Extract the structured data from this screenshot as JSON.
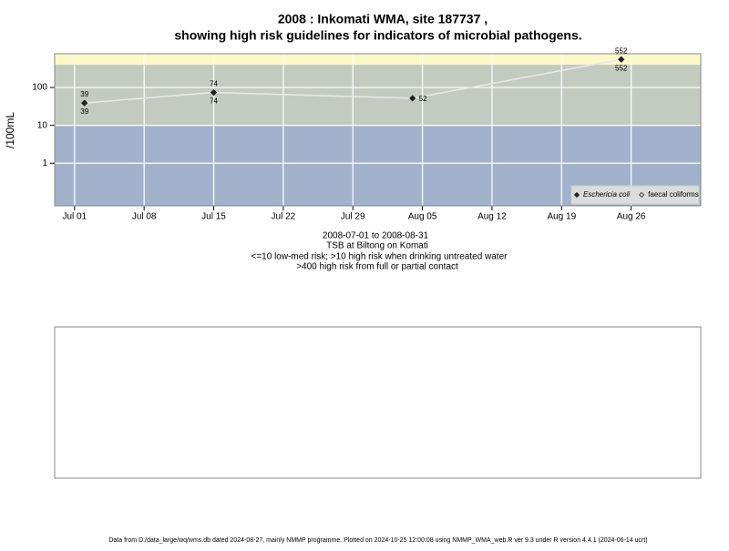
{
  "chart_data": {
    "type": "line",
    "title": "2008 : Inkomati WMA, site 187737 ,",
    "subtitle": "showing high risk guidelines for indicators of microbial pathogens.",
    "y_label": "/100mL",
    "caption": [
      "2008-07-01 to 2008-08-31",
      "TSB at Biltong on Komati",
      "<=10 low-med risk; >10 high risk when drinking untreated water",
      ">400 high risk from full or partial contact"
    ],
    "footer": "Data from D:/data_large/wq/wms.db dated 2024-08-27, mainly NMMP programme. Plotted on 2024-10-25 12:00:08 using NMMP_WMA_web.R ver 9.3 under R version 4.4.1 (2024-06-14 ucrt)",
    "log_y": true,
    "grid": true,
    "legend": "bottom-right",
    "bands": [
      {
        "to": 10,
        "color": "#a2b2cc"
      },
      {
        "from": 10,
        "to": 400,
        "color": "#c3cbc0"
      },
      {
        "from": 400,
        "color": "#fdf8c8"
      }
    ],
    "xlim": [
      "2008-06-29",
      "2008-09-02"
    ],
    "xticks": [
      {
        "value": "2008-07-01",
        "label": "Jul 01"
      },
      {
        "value": "2008-07-08",
        "label": "Jul 08"
      },
      {
        "value": "2008-07-15",
        "label": "Jul 15"
      },
      {
        "value": "2008-07-22",
        "label": "Jul 22"
      },
      {
        "value": "2008-07-29",
        "label": "Jul 29"
      },
      {
        "value": "2008-08-05",
        "label": "Aug 05"
      },
      {
        "value": "2008-08-12",
        "label": "Aug 12"
      },
      {
        "value": "2008-08-19",
        "label": "Aug 19"
      },
      {
        "value": "2008-08-26",
        "label": "Aug 26"
      }
    ],
    "ylim": [
      0.075,
      780
    ],
    "yticks": [
      1,
      10,
      100
    ],
    "x": [
      "2008-07-02",
      "2008-07-15",
      "2008-08-04",
      "2008-08-25"
    ],
    "series": [
      {
        "name": "Eschericia coli",
        "color": "#222222",
        "marker": "filled",
        "values": [
          39,
          74,
          52,
          552
        ]
      },
      {
        "name": "faecal coliforms",
        "color": "#222222",
        "marker": "open",
        "values": [
          39,
          74,
          null,
          552
        ]
      }
    ]
  }
}
